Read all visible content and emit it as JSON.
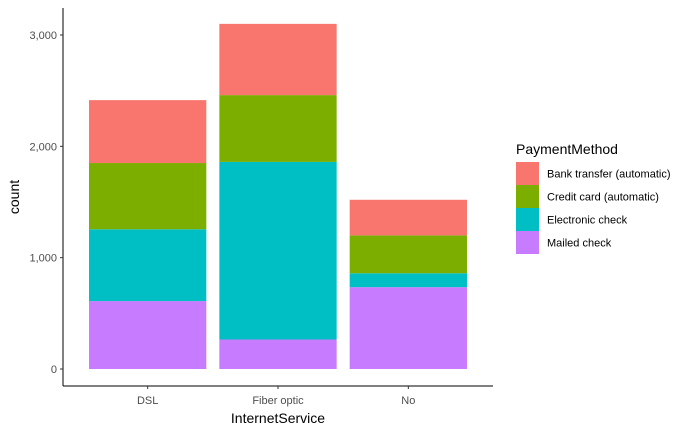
{
  "chart_data": {
    "type": "bar",
    "stacked": true,
    "xlabel": "InternetService",
    "ylabel": "count",
    "categories": [
      "DSL",
      "Fiber optic",
      "No"
    ],
    "ylim": [
      0,
      3250
    ],
    "yticks": [
      0,
      1000,
      2000,
      3000
    ],
    "ytick_labels": [
      "0",
      "1,000",
      "2,000",
      "3,000"
    ],
    "grid": false,
    "legend": {
      "title": "PaymentMethod",
      "placement": "right"
    },
    "series": [
      {
        "name": "Mailed check",
        "color": "#C77CFF",
        "values": [
          610,
          265,
          735
        ]
      },
      {
        "name": "Electronic check",
        "color": "#00BFC4",
        "values": [
          645,
          1595,
          125
        ]
      },
      {
        "name": "Credit card (automatic)",
        "color": "#7CAE00",
        "values": [
          595,
          600,
          340
        ]
      },
      {
        "name": "Bank transfer (automatic)",
        "color": "#F8766D",
        "values": [
          565,
          640,
          320
        ]
      }
    ],
    "legend_order": [
      "Bank transfer (automatic)",
      "Credit card (automatic)",
      "Electronic check",
      "Mailed check"
    ]
  }
}
